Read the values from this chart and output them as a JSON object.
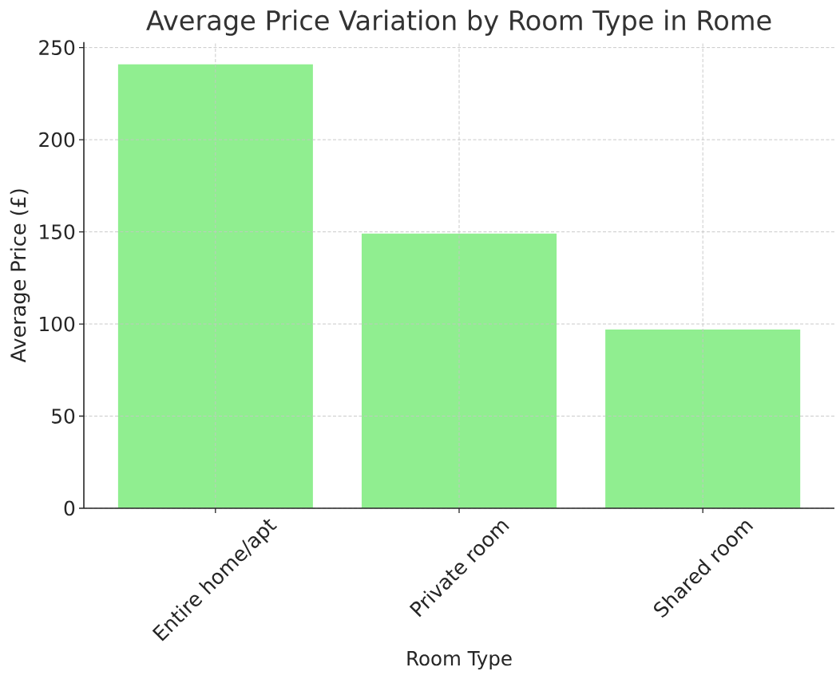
{
  "chart_data": {
    "type": "bar",
    "title": "Average Price Variation by Room Type in Rome",
    "xlabel": "Room Type",
    "ylabel": "Average Price (£)",
    "categories": [
      "Entire home/apt",
      "Private room",
      "Shared room"
    ],
    "values": [
      241,
      149,
      97
    ],
    "color": "#90ee90",
    "ylim": [
      0,
      253
    ],
    "yticks": [
      0,
      50,
      100,
      150,
      200,
      250
    ],
    "grid": true
  }
}
